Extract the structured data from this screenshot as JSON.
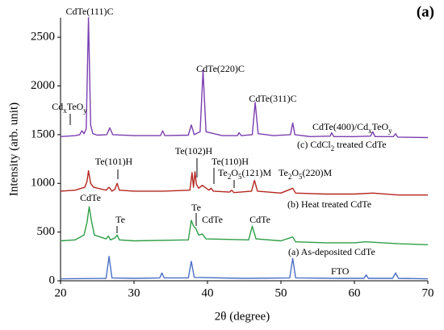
{
  "chart_data": {
    "type": "line",
    "title": "(a)",
    "xlabel": "2θ (degree)",
    "ylabel": "Intensity (arb. unit)",
    "xlim": [
      20,
      70
    ],
    "xticks": [
      20,
      30,
      40,
      50,
      60,
      70
    ],
    "ylim": [
      0,
      2700
    ],
    "yticks": [
      0,
      500,
      1000,
      1500,
      2000,
      2500
    ],
    "series": [
      {
        "color": "#7b3fb0",
        "x": [
          20,
          21,
          22,
          22.6,
          22.9,
          23.2,
          23.5,
          23.8,
          24.1,
          24.4,
          25,
          26.3,
          26.7,
          27.1,
          30,
          33.6,
          33.9,
          34.2,
          37.4,
          37.8,
          38.2,
          39.0,
          39.4,
          39.8,
          42,
          44.1,
          44.3,
          44.6,
          46.1,
          46.5,
          46.9,
          49,
          51.3,
          51.6,
          51.9,
          54,
          56.7,
          56.9,
          57.2,
          60,
          62.2,
          62.5,
          62.8,
          65.3,
          65.6,
          65.9,
          70
        ],
        "values": [
          1480,
          1485,
          1490,
          1500,
          1540,
          1510,
          1560,
          2700,
          1600,
          1510,
          1495,
          1500,
          1570,
          1500,
          1490,
          1490,
          1540,
          1490,
          1495,
          1600,
          1500,
          1530,
          2160,
          1530,
          1490,
          1490,
          1520,
          1490,
          1500,
          1830,
          1510,
          1490,
          1500,
          1620,
          1500,
          1480,
          1485,
          1520,
          1480,
          1480,
          1485,
          1530,
          1480,
          1480,
          1510,
          1475,
          1470
        ]
      },
      {
        "color": "#b3261e",
        "x": [
          20,
          22,
          23.3,
          23.6,
          23.8,
          24.1,
          24.5,
          26.2,
          26.6,
          27.0,
          27.4,
          27.7,
          28.0,
          30,
          34,
          37.6,
          37.9,
          38.1,
          38.3,
          38.5,
          38.8,
          39.3,
          40.2,
          40.5,
          40.8,
          43,
          43.3,
          43.6,
          46,
          46.4,
          46.8,
          50,
          51.6,
          52,
          56,
          60,
          62.5,
          66,
          70
        ],
        "values": [
          920,
          930,
          960,
          1020,
          1130,
          1000,
          960,
          930,
          960,
          920,
          940,
          1000,
          930,
          920,
          920,
          930,
          1110,
          960,
          1120,
          990,
          950,
          980,
          930,
          950,
          920,
          910,
          930,
          905,
          920,
          1030,
          920,
          900,
          950,
          900,
          890,
          890,
          900,
          880,
          880
        ]
      },
      {
        "color": "#2e9e46",
        "x": [
          20,
          22,
          23.2,
          23.6,
          23.9,
          24.2,
          24.6,
          26.2,
          26.5,
          26.8,
          27.4,
          27.7,
          28.0,
          30,
          37.4,
          37.8,
          38.1,
          38.4,
          38.8,
          39.3,
          39.8,
          45.6,
          46.1,
          46.6,
          50,
          51.6,
          52,
          56,
          60,
          61.5,
          66,
          70
        ],
        "values": [
          410,
          420,
          470,
          600,
          760,
          620,
          470,
          430,
          460,
          420,
          440,
          470,
          420,
          410,
          420,
          620,
          560,
          540,
          470,
          480,
          430,
          420,
          560,
          430,
          410,
          450,
          400,
          390,
          390,
          400,
          380,
          370
        ]
      },
      {
        "color": "#4a6fc4",
        "x": [
          20,
          26.2,
          26.6,
          27.0,
          30,
          33.5,
          33.8,
          34.1,
          37.4,
          37.8,
          38.2,
          45,
          51.2,
          51.6,
          52.0,
          58,
          61.3,
          61.6,
          61.9,
          65.2,
          65.6,
          66,
          70
        ],
        "values": [
          20,
          25,
          250,
          30,
          25,
          30,
          80,
          30,
          30,
          200,
          35,
          25,
          30,
          230,
          30,
          25,
          25,
          60,
          25,
          25,
          80,
          25,
          20
        ]
      }
    ],
    "annotations": [
      {
        "parts": [
          "CdTe(111)C"
        ]
      },
      {
        "parts": [
          "Cd",
          "x",
          "TeO",
          "y"
        ]
      },
      {
        "parts": [
          "CdTe(220)C"
        ]
      },
      {
        "parts": [
          "CdTe(311)C"
        ]
      },
      {
        "parts": [
          "CdTe(400)/Cd",
          "x",
          "TeO",
          "y"
        ]
      },
      {
        "parts": [
          "(c) CdCl",
          "2",
          " treated CdTe"
        ]
      },
      {
        "parts": [
          "Te(101)H"
        ]
      },
      {
        "parts": [
          "Te(102)H"
        ]
      },
      {
        "parts": [
          "Te(110)H"
        ]
      },
      {
        "parts": [
          "Te",
          "2",
          "O",
          "5",
          "(121)M"
        ]
      },
      {
        "parts": [
          "Te",
          "2",
          "O",
          "5",
          "(220)M"
        ]
      },
      {
        "parts": [
          "(b) Heat treated CdTe"
        ]
      },
      {
        "parts": [
          "CdTe"
        ]
      },
      {
        "parts": [
          "Te"
        ]
      },
      {
        "parts": [
          "Te"
        ]
      },
      {
        "parts": [
          "CdTe"
        ]
      },
      {
        "parts": [
          "CdTe"
        ]
      },
      {
        "parts": [
          "(a) As-deposited CdTe"
        ]
      },
      {
        "parts": [
          "FTO"
        ]
      }
    ]
  }
}
